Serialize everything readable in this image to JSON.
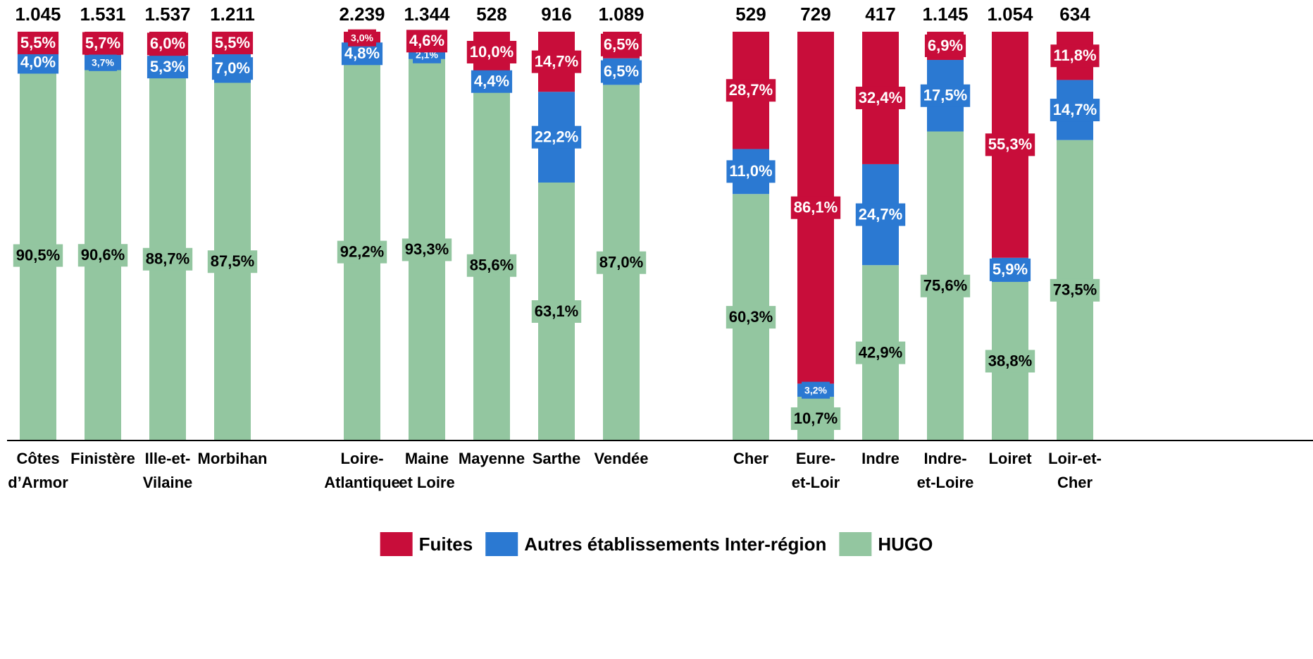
{
  "chart_data": {
    "type": "stacked_bar_100",
    "categories": [
      [
        "Côtes",
        "d’Armor"
      ],
      [
        "Finistère"
      ],
      [
        "Ille-et-",
        "Vilaine"
      ],
      [
        "Morbihan"
      ],
      [
        "Loire-",
        "Atlantique"
      ],
      [
        "Maine",
        "et Loire"
      ],
      [
        "Mayenne"
      ],
      [
        "Sarthe"
      ],
      [
        "Vendée"
      ],
      [
        "Cher"
      ],
      [
        "Eure-",
        "et-Loir"
      ],
      [
        "Indre"
      ],
      [
        "Indre-",
        "et-Loire"
      ],
      [
        "Loiret"
      ],
      [
        "Loir-et-",
        "Cher"
      ]
    ],
    "totals": [
      1045,
      1531,
      1537,
      1211,
      2239,
      1344,
      528,
      916,
      1089,
      529,
      729,
      417,
      1145,
      1054,
      634
    ],
    "total_labels": [
      "1.045",
      "1.531",
      "1.537",
      "1.211",
      "2.239",
      "1.344",
      "528",
      "916",
      "1.089",
      "529",
      "729",
      "417",
      "1.145",
      "1.054",
      "634"
    ],
    "ylim": [
      0,
      100
    ],
    "series": [
      {
        "name": "HUGO",
        "color": "#93c6a0",
        "label_color": "#000000",
        "values": [
          90.5,
          90.6,
          88.7,
          87.5,
          92.2,
          93.3,
          85.6,
          63.1,
          87.0,
          60.3,
          10.7,
          42.9,
          75.6,
          38.8,
          73.5
        ],
        "value_labels": [
          "90,5%",
          "90,6%",
          "88,7%",
          "87,5%",
          "92,2%",
          "93,3%",
          "85,6%",
          "63,1%",
          "87,0%",
          "60,3%",
          "10,7%",
          "42,9%",
          "75,6%",
          "38,8%",
          "73,5%"
        ]
      },
      {
        "name": "Autres établissements Inter-région",
        "color": "#2b79d2",
        "label_color": "#ffffff",
        "values": [
          4.0,
          3.7,
          5.3,
          7.0,
          4.8,
          2.1,
          4.4,
          22.2,
          6.5,
          11.0,
          3.2,
          24.7,
          17.5,
          5.9,
          14.7
        ],
        "value_labels": [
          "4,0%",
          "3,7%",
          "5,3%",
          "7,0%",
          "4,8%",
          "2,1%",
          "4,4%",
          "22,2%",
          "6,5%",
          "11,0%",
          "3,2%",
          "24,7%",
          "17,5%",
          "5,9%",
          "14,7%"
        ]
      },
      {
        "name": "Fuites",
        "color": "#c80d3a",
        "label_color": "#ffffff",
        "values": [
          5.5,
          5.7,
          6.0,
          5.5,
          3.0,
          4.6,
          10.0,
          14.7,
          6.5,
          28.7,
          86.1,
          32.4,
          6.9,
          55.3,
          11.8
        ],
        "value_labels": [
          "5,5%",
          "5,7%",
          "6,0%",
          "5,5%",
          "3,0%",
          "4,6%",
          "10,0%",
          "14,7%",
          "6,5%",
          "28,7%",
          "86,1%",
          "32,4%",
          "6,9%",
          "55,3%",
          "11,8%"
        ]
      }
    ],
    "legend_order": [
      2,
      1,
      0
    ]
  }
}
